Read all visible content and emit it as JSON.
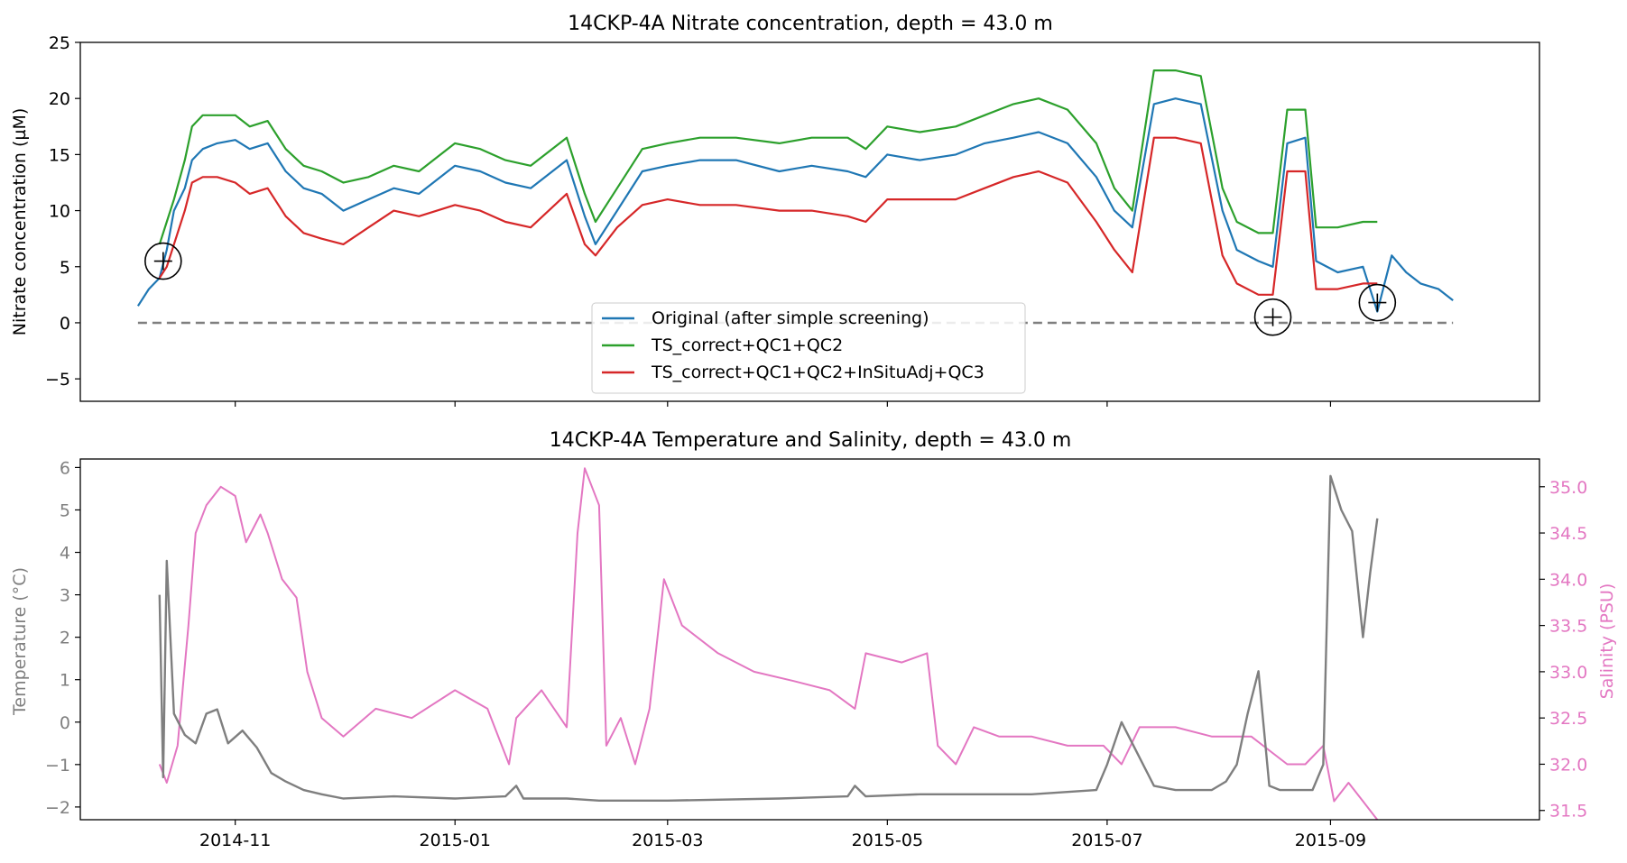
{
  "colors": {
    "original": "#1f77b4",
    "qc12": "#2ca02c",
    "qc3": "#d62728",
    "temperature": "#7f7f7f",
    "salinity": "#e377c2",
    "zero_line": "#7f7f7f"
  },
  "chart_data": [
    {
      "type": "line",
      "title": "14CKP-4A Nitrate concentration, depth = 43.0 m",
      "xlabel": "",
      "ylabel": "Nitrate concentration (µM)",
      "ylim": [
        -7,
        25
      ],
      "xlim": [
        "2014-09-19",
        "2015-10-29"
      ],
      "yticks": [
        -5,
        0,
        5,
        10,
        15,
        20,
        25
      ],
      "grid": false,
      "legend": "lower-center",
      "reference_line": {
        "y": 0,
        "style": "dashed"
      },
      "markers": [
        {
          "symbol": "circled-plus",
          "x": "2014-10-12",
          "y": 5.5
        },
        {
          "symbol": "circled-plus",
          "x": "2015-08-16",
          "y": 0.5
        },
        {
          "symbol": "circled-plus",
          "x": "2015-09-14",
          "y": 1.8
        }
      ],
      "series": [
        {
          "name": "Original (after simple screening)",
          "color": "#1f77b4",
          "x": [
            "2014-10-05",
            "2014-10-08",
            "2014-10-11",
            "2014-10-13",
            "2014-10-15",
            "2014-10-18",
            "2014-10-20",
            "2014-10-23",
            "2014-10-27",
            "2014-11-01",
            "2014-11-05",
            "2014-11-10",
            "2014-11-15",
            "2014-11-20",
            "2014-11-25",
            "2014-12-01",
            "2014-12-08",
            "2014-12-15",
            "2014-12-22",
            "2015-01-01",
            "2015-01-08",
            "2015-01-15",
            "2015-01-22",
            "2015-02-01",
            "2015-02-06",
            "2015-02-09",
            "2015-02-15",
            "2015-02-22",
            "2015-03-01",
            "2015-03-10",
            "2015-03-20",
            "2015-04-01",
            "2015-04-10",
            "2015-04-20",
            "2015-04-25",
            "2015-05-01",
            "2015-05-10",
            "2015-05-20",
            "2015-05-28",
            "2015-06-05",
            "2015-06-12",
            "2015-06-20",
            "2015-06-28",
            "2015-07-03",
            "2015-07-08",
            "2015-07-14",
            "2015-07-20",
            "2015-07-27",
            "2015-08-02",
            "2015-08-06",
            "2015-08-12",
            "2015-08-16",
            "2015-08-20",
            "2015-08-25",
            "2015-08-28",
            "2015-09-03",
            "2015-09-10",
            "2015-09-14",
            "2015-09-18",
            "2015-09-22",
            "2015-09-26",
            "2015-10-01",
            "2015-10-05"
          ],
          "values": [
            1.5,
            3.0,
            4.0,
            6.5,
            10.0,
            12.0,
            14.5,
            15.5,
            16.0,
            16.3,
            15.5,
            16.0,
            13.5,
            12.0,
            11.5,
            10.0,
            11.0,
            12.0,
            11.5,
            14.0,
            13.5,
            12.5,
            12.0,
            14.5,
            9.5,
            7.0,
            10.0,
            13.5,
            14.0,
            14.5,
            14.5,
            13.5,
            14.0,
            13.5,
            13.0,
            15.0,
            14.5,
            15.0,
            16.0,
            16.5,
            17.0,
            16.0,
            13.0,
            10.0,
            8.5,
            19.5,
            20.0,
            19.5,
            10.0,
            6.5,
            5.5,
            5.0,
            16.0,
            16.5,
            5.5,
            4.5,
            5.0,
            1.0,
            6.0,
            4.5,
            3.5,
            3.0,
            2.0
          ]
        },
        {
          "name": "TS_correct+QC1+QC2",
          "color": "#2ca02c",
          "x": [
            "2014-10-11",
            "2014-10-13",
            "2014-10-15",
            "2014-10-18",
            "2014-10-20",
            "2014-10-23",
            "2014-10-27",
            "2014-11-01",
            "2014-11-05",
            "2014-11-10",
            "2014-11-15",
            "2014-11-20",
            "2014-11-25",
            "2014-12-01",
            "2014-12-08",
            "2014-12-15",
            "2014-12-22",
            "2015-01-01",
            "2015-01-08",
            "2015-01-15",
            "2015-01-22",
            "2015-02-01",
            "2015-02-06",
            "2015-02-09",
            "2015-02-15",
            "2015-02-22",
            "2015-03-01",
            "2015-03-10",
            "2015-03-20",
            "2015-04-01",
            "2015-04-10",
            "2015-04-20",
            "2015-04-25",
            "2015-05-01",
            "2015-05-10",
            "2015-05-20",
            "2015-05-28",
            "2015-06-05",
            "2015-06-12",
            "2015-06-20",
            "2015-06-28",
            "2015-07-03",
            "2015-07-08",
            "2015-07-14",
            "2015-07-20",
            "2015-07-27",
            "2015-08-02",
            "2015-08-06",
            "2015-08-12",
            "2015-08-16",
            "2015-08-20",
            "2015-08-25",
            "2015-08-28",
            "2015-09-03",
            "2015-09-10",
            "2015-09-14"
          ],
          "values": [
            7.0,
            9.0,
            11.0,
            14.5,
            17.5,
            18.5,
            18.5,
            18.5,
            17.5,
            18.0,
            15.5,
            14.0,
            13.5,
            12.5,
            13.0,
            14.0,
            13.5,
            16.0,
            15.5,
            14.5,
            14.0,
            16.5,
            11.5,
            9.0,
            12.0,
            15.5,
            16.0,
            16.5,
            16.5,
            16.0,
            16.5,
            16.5,
            15.5,
            17.5,
            17.0,
            17.5,
            18.5,
            19.5,
            20.0,
            19.0,
            16.0,
            12.0,
            10.0,
            22.5,
            22.5,
            22.0,
            12.0,
            9.0,
            8.0,
            8.0,
            19.0,
            19.0,
            8.5,
            8.5,
            9.0,
            9.0
          ]
        },
        {
          "name": "TS_correct+QC1+QC2+InSituAdj+QC3",
          "color": "#d62728",
          "x": [
            "2014-10-11",
            "2014-10-13",
            "2014-10-15",
            "2014-10-18",
            "2014-10-20",
            "2014-10-23",
            "2014-10-27",
            "2014-11-01",
            "2014-11-05",
            "2014-11-10",
            "2014-11-15",
            "2014-11-20",
            "2014-11-25",
            "2014-12-01",
            "2014-12-08",
            "2014-12-15",
            "2014-12-22",
            "2015-01-01",
            "2015-01-08",
            "2015-01-15",
            "2015-01-22",
            "2015-02-01",
            "2015-02-06",
            "2015-02-09",
            "2015-02-15",
            "2015-02-22",
            "2015-03-01",
            "2015-03-10",
            "2015-03-20",
            "2015-04-01",
            "2015-04-10",
            "2015-04-20",
            "2015-04-25",
            "2015-05-01",
            "2015-05-10",
            "2015-05-20",
            "2015-05-28",
            "2015-06-05",
            "2015-06-12",
            "2015-06-20",
            "2015-06-28",
            "2015-07-03",
            "2015-07-08",
            "2015-07-14",
            "2015-07-20",
            "2015-07-27",
            "2015-08-02",
            "2015-08-06",
            "2015-08-12",
            "2015-08-16",
            "2015-08-20",
            "2015-08-25",
            "2015-08-28",
            "2015-09-03",
            "2015-09-10",
            "2015-09-14"
          ],
          "values": [
            4.0,
            5.0,
            7.0,
            10.0,
            12.5,
            13.0,
            13.0,
            12.5,
            11.5,
            12.0,
            9.5,
            8.0,
            7.5,
            7.0,
            8.5,
            10.0,
            9.5,
            10.5,
            10.0,
            9.0,
            8.5,
            11.5,
            7.0,
            6.0,
            8.5,
            10.5,
            11.0,
            10.5,
            10.5,
            10.0,
            10.0,
            9.5,
            9.0,
            11.0,
            11.0,
            11.0,
            12.0,
            13.0,
            13.5,
            12.5,
            9.0,
            6.5,
            4.5,
            16.5,
            16.5,
            16.0,
            6.0,
            3.5,
            2.5,
            2.5,
            13.5,
            13.5,
            3.0,
            3.0,
            3.5,
            3.5
          ]
        }
      ]
    },
    {
      "type": "line",
      "title": "14CKP-4A Temperature and Salinity, depth = 43.0 m",
      "xlabel": "",
      "ylabel": "Temperature (°C)",
      "ylabel_right": "Salinity (PSU)",
      "ylim": [
        -2.3,
        6.2
      ],
      "ylim_right": [
        31.4,
        35.3
      ],
      "xlim": [
        "2014-09-19",
        "2015-10-29"
      ],
      "yticks": [
        -2,
        -1,
        0,
        1,
        2,
        3,
        4,
        5,
        6
      ],
      "yticks_right": [
        "31.5",
        "32.0",
        "32.5",
        "33.0",
        "33.5",
        "34.0",
        "34.5",
        "35.0"
      ],
      "xticks": [
        "2014-11",
        "2015-01",
        "2015-03",
        "2015-05",
        "2015-07",
        "2015-09"
      ],
      "grid": false,
      "series": [
        {
          "name": "Temperature",
          "axis": "left",
          "color": "#7f7f7f",
          "x": [
            "2014-10-11",
            "2014-10-12",
            "2014-10-13",
            "2014-10-14",
            "2014-10-15",
            "2014-10-18",
            "2014-10-21",
            "2014-10-24",
            "2014-10-27",
            "2014-10-30",
            "2014-11-03",
            "2014-11-07",
            "2014-11-11",
            "2014-11-15",
            "2014-11-20",
            "2014-11-25",
            "2014-12-01",
            "2014-12-15",
            "2015-01-01",
            "2015-01-15",
            "2015-01-18",
            "2015-01-20",
            "2015-02-01",
            "2015-02-10",
            "2015-03-01",
            "2015-04-01",
            "2015-04-20",
            "2015-04-22",
            "2015-04-25",
            "2015-05-10",
            "2015-06-10",
            "2015-06-28",
            "2015-07-01",
            "2015-07-03",
            "2015-07-05",
            "2015-07-08",
            "2015-07-14",
            "2015-07-20",
            "2015-07-25",
            "2015-07-30",
            "2015-08-03",
            "2015-08-06",
            "2015-08-09",
            "2015-08-12",
            "2015-08-15",
            "2015-08-18",
            "2015-08-22",
            "2015-08-27",
            "2015-08-30",
            "2015-09-01",
            "2015-09-04",
            "2015-09-07",
            "2015-09-10",
            "2015-09-12",
            "2015-09-14"
          ],
          "values": [
            3.0,
            -1.3,
            3.8,
            2.0,
            0.2,
            -0.3,
            -0.5,
            0.2,
            0.3,
            -0.5,
            -0.2,
            -0.6,
            -1.2,
            -1.4,
            -1.6,
            -1.7,
            -1.8,
            -1.75,
            -1.8,
            -1.75,
            -1.5,
            -1.8,
            -1.8,
            -1.85,
            -1.85,
            -1.8,
            -1.75,
            -1.5,
            -1.75,
            -1.7,
            -1.7,
            -1.6,
            -1.0,
            -0.5,
            0.0,
            -0.5,
            -1.5,
            -1.6,
            -1.6,
            -1.6,
            -1.4,
            -1.0,
            0.2,
            1.2,
            -1.5,
            -1.6,
            -1.6,
            -1.6,
            -1.0,
            5.8,
            5.0,
            4.5,
            2.0,
            3.5,
            4.8
          ]
        },
        {
          "name": "Salinity",
          "axis": "right",
          "color": "#e377c2",
          "x": [
            "2014-10-11",
            "2014-10-13",
            "2014-10-16",
            "2014-10-19",
            "2014-10-21",
            "2014-10-24",
            "2014-10-28",
            "2014-11-01",
            "2014-11-04",
            "2014-11-08",
            "2014-11-10",
            "2014-11-14",
            "2014-11-18",
            "2014-11-21",
            "2014-11-25",
            "2014-12-01",
            "2014-12-10",
            "2014-12-20",
            "2015-01-01",
            "2015-01-10",
            "2015-01-16",
            "2015-01-18",
            "2015-01-25",
            "2015-02-01",
            "2015-02-04",
            "2015-02-06",
            "2015-02-10",
            "2015-02-12",
            "2015-02-16",
            "2015-02-20",
            "2015-02-24",
            "2015-02-28",
            "2015-03-05",
            "2015-03-15",
            "2015-03-25",
            "2015-04-05",
            "2015-04-15",
            "2015-04-22",
            "2015-04-25",
            "2015-05-05",
            "2015-05-12",
            "2015-05-15",
            "2015-05-20",
            "2015-05-25",
            "2015-06-01",
            "2015-06-10",
            "2015-06-20",
            "2015-06-30",
            "2015-07-05",
            "2015-07-10",
            "2015-07-20",
            "2015-07-30",
            "2015-08-10",
            "2015-08-20",
            "2015-08-25",
            "2015-08-30",
            "2015-09-02",
            "2015-09-06",
            "2015-09-10",
            "2015-09-14"
          ],
          "values": [
            32.0,
            31.8,
            32.2,
            33.5,
            34.5,
            34.8,
            35.0,
            34.9,
            34.4,
            34.7,
            34.5,
            34.0,
            33.8,
            33.0,
            32.5,
            32.3,
            32.6,
            32.5,
            32.8,
            32.6,
            32.0,
            32.5,
            32.8,
            32.4,
            34.5,
            35.2,
            34.8,
            32.2,
            32.5,
            32.0,
            32.6,
            34.0,
            33.5,
            33.2,
            33.0,
            32.9,
            32.8,
            32.6,
            33.2,
            33.1,
            33.2,
            32.2,
            32.0,
            32.4,
            32.3,
            32.3,
            32.2,
            32.2,
            32.0,
            32.4,
            32.4,
            32.3,
            32.3,
            32.0,
            32.0,
            32.2,
            31.6,
            31.8,
            31.6,
            31.4
          ]
        }
      ]
    }
  ]
}
